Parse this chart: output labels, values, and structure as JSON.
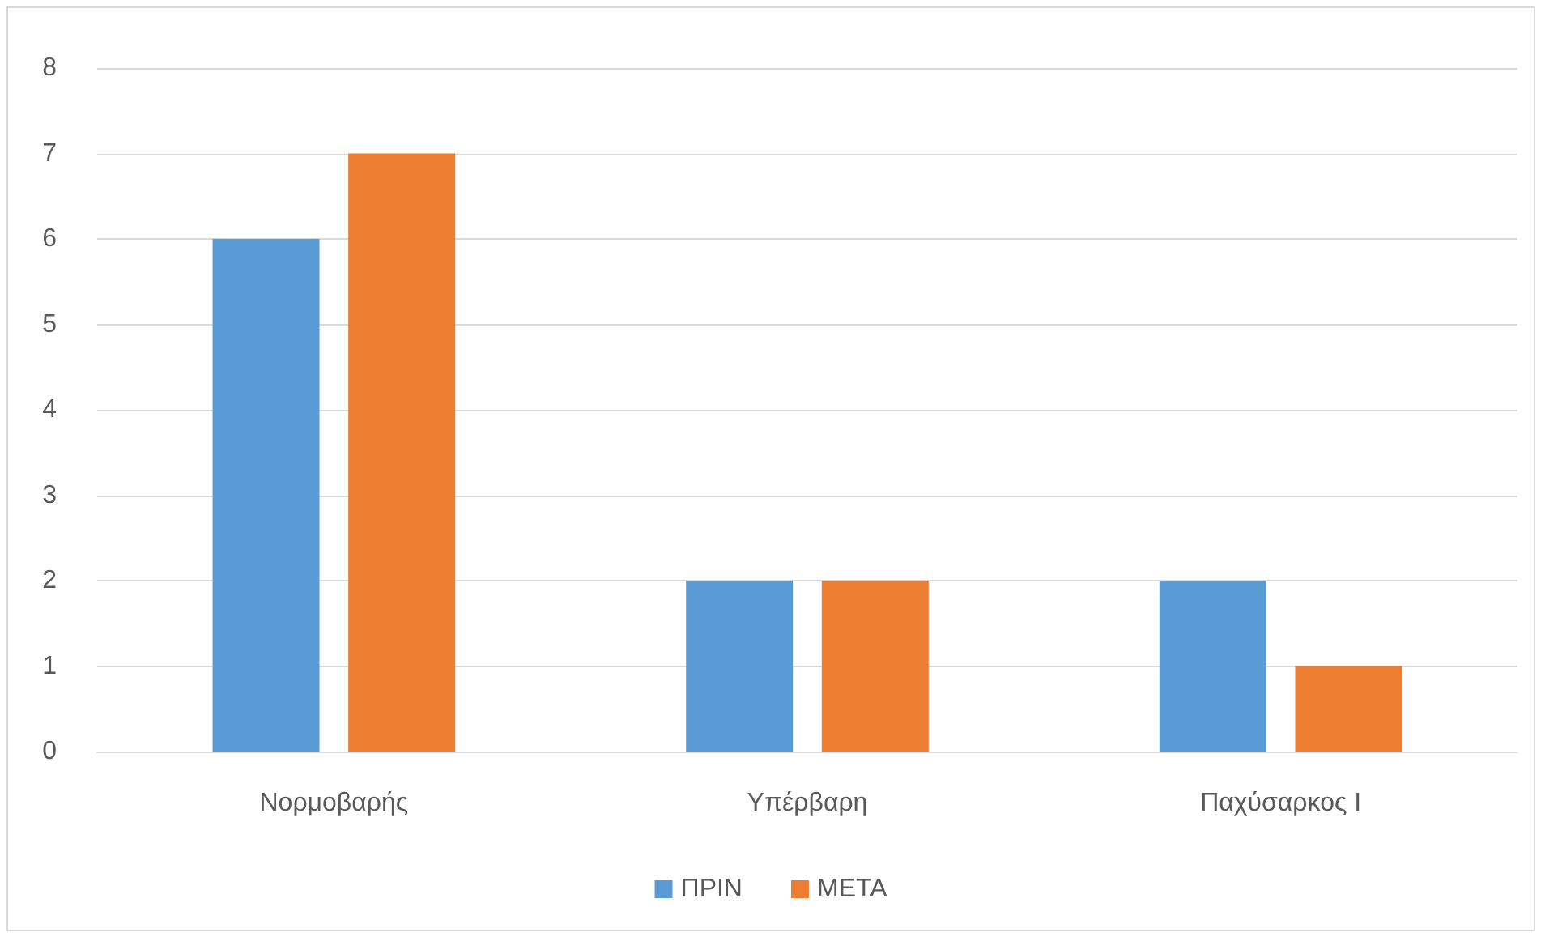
{
  "chart_data": {
    "type": "bar",
    "categories": [
      "Νορμοβαρής",
      "Υπέρβαρη",
      "Παχύσαρκος Ι"
    ],
    "series": [
      {
        "name": "ΠΡΙΝ",
        "color": "#5b9bd5",
        "values": [
          6,
          2,
          2
        ]
      },
      {
        "name": "ΜΕΤΑ",
        "color": "#ed7d31",
        "values": [
          7,
          2,
          1
        ]
      }
    ],
    "ylim": [
      0,
      8
    ],
    "yticks": [
      0,
      1,
      2,
      3,
      4,
      5,
      6,
      7,
      8
    ],
    "grid": "y",
    "legend": "bottom"
  }
}
